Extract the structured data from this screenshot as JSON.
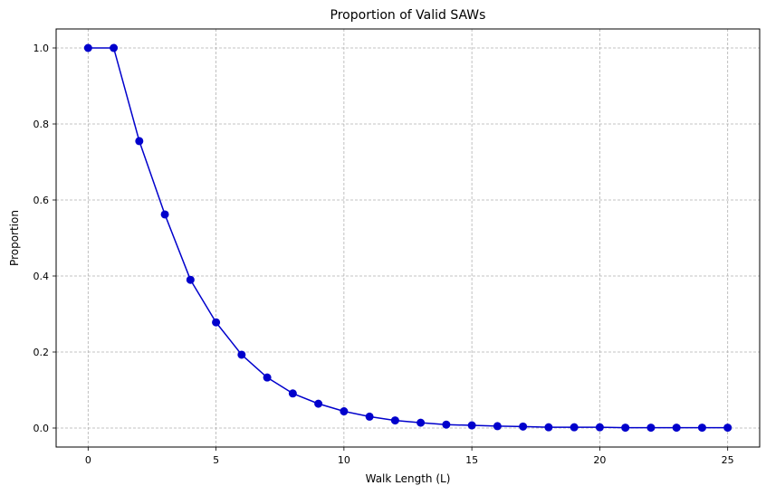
{
  "chart_data": {
    "type": "line",
    "title": "Proportion of Valid SAWs",
    "xlabel": "Walk Length (L)",
    "ylabel": "Proportion",
    "xlim": [
      -1.25,
      26.25
    ],
    "ylim": [
      -0.05,
      1.05
    ],
    "xticks": [
      0,
      5,
      10,
      15,
      20,
      25
    ],
    "yticks": [
      0.0,
      0.2,
      0.4,
      0.6,
      0.8,
      1.0
    ],
    "xtick_labels": [
      "0",
      "5",
      "10",
      "15",
      "20",
      "25"
    ],
    "ytick_labels": [
      "0.0",
      "0.2",
      "0.4",
      "0.6",
      "0.8",
      "1.0"
    ],
    "grid": true,
    "legend": false,
    "series": [
      {
        "color": "#0000cc",
        "marker": "circle",
        "x": [
          0,
          1,
          2,
          3,
          4,
          5,
          6,
          7,
          8,
          9,
          10,
          11,
          12,
          13,
          14,
          15,
          16,
          17,
          18,
          19,
          20,
          21,
          22,
          23,
          24,
          25
        ],
        "y": [
          1.0,
          1.0,
          0.755,
          0.562,
          0.39,
          0.278,
          0.193,
          0.133,
          0.091,
          0.064,
          0.044,
          0.03,
          0.02,
          0.014,
          0.009,
          0.007,
          0.005,
          0.004,
          0.002,
          0.002,
          0.002,
          0.001,
          0.001,
          0.001,
          0.001,
          0.001
        ]
      }
    ]
  }
}
